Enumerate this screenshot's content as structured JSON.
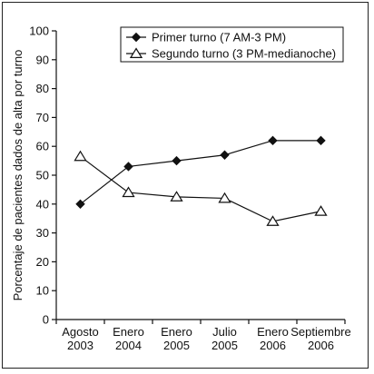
{
  "chart_data": {
    "type": "line",
    "title": "",
    "xlabel": "",
    "ylabel": "Porcentaje de pacientes dados de alta por turno",
    "ylim": [
      0,
      100
    ],
    "yticks": [
      0,
      10,
      20,
      30,
      40,
      50,
      60,
      70,
      80,
      90,
      100
    ],
    "categories": [
      [
        "Agosto",
        "2003"
      ],
      [
        "Enero",
        "2004"
      ],
      [
        "Enero",
        "2005"
      ],
      [
        "Julio",
        "2005"
      ],
      [
        "Enero",
        "2006"
      ],
      [
        "Septiembre",
        "2006"
      ]
    ],
    "series": [
      {
        "name": "Primer turno (7 AM-3 PM)",
        "marker": "filled-diamond",
        "color": "#111111",
        "values": [
          40,
          53,
          55,
          57,
          62,
          62
        ]
      },
      {
        "name": "Segundo turno (3 PM-medianoche)",
        "marker": "open-triangle",
        "color": "#111111",
        "values": [
          56.5,
          44,
          42.5,
          42,
          34,
          37.5
        ]
      }
    ],
    "legend": "top-right",
    "grid": false
  }
}
